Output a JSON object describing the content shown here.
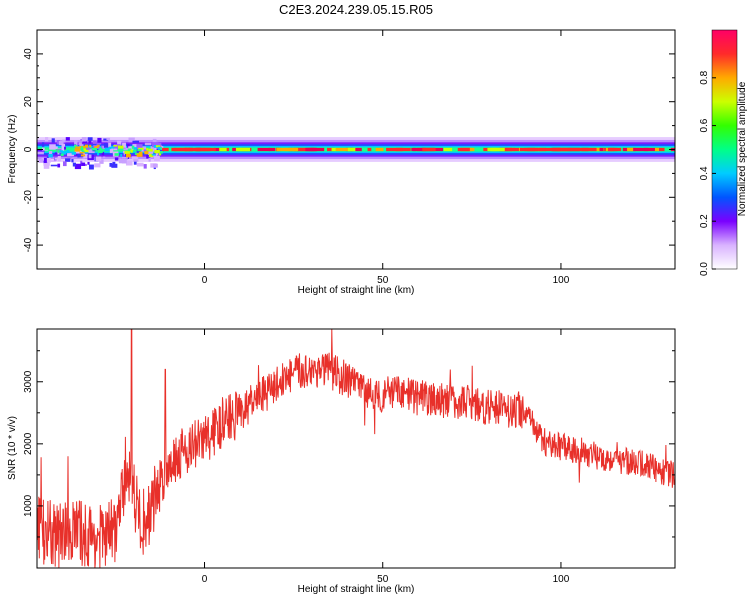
{
  "figure": {
    "title": "C2E3.2024.239.05.15.R05"
  },
  "chart_data": [
    {
      "type": "heatmap",
      "xlabel": "Height of straight line (km)",
      "ylabel": "Frequency (Hz)",
      "xlim": [
        -47,
        132
      ],
      "ylim": [
        -50,
        50
      ],
      "xticks": [
        0,
        50,
        100
      ],
      "yticks": [
        40,
        20,
        0,
        -20,
        -40
      ],
      "grid": false,
      "colorbar": {
        "label": "Normalized spectral amplitude",
        "range": [
          0.0,
          1.0
        ],
        "ticks": [
          0.0,
          0.2,
          0.4,
          0.6,
          0.8
        ]
      },
      "band": {
        "center_frequency_hz": 0,
        "core_half_width_hz": 1,
        "outer_half_width_hz": 5,
        "peak_amplitude": 0.95
      }
    },
    {
      "type": "line",
      "xlabel": "Height of straight line (km)",
      "ylabel": "SNR (10 * v/v)",
      "xlim": [
        -47,
        132
      ],
      "ylim": [
        0,
        3850
      ],
      "xticks": [
        0,
        50,
        100
      ],
      "yticks": [
        1000,
        2000,
        3000
      ],
      "grid": false,
      "series": [
        {
          "color": "#e8302a",
          "x": [
            -47,
            -44,
            -40,
            -36,
            -32,
            -28,
            -25,
            -23,
            -22,
            -20,
            -18,
            -16,
            -13,
            -10,
            -6,
            -2,
            2,
            6,
            10,
            14,
            18,
            22,
            26,
            30,
            34,
            38,
            42,
            46,
            50,
            55,
            60,
            65,
            70,
            75,
            80,
            85,
            88,
            90,
            93,
            96,
            100,
            105,
            110,
            115,
            120,
            125,
            128,
            132
          ],
          "values": [
            700,
            550,
            520,
            600,
            500,
            480,
            650,
            1100,
            1700,
            1300,
            700,
            800,
            1300,
            1700,
            1900,
            2000,
            2150,
            2400,
            2500,
            2700,
            2850,
            3050,
            3150,
            3200,
            3200,
            3100,
            2950,
            2850,
            2800,
            2800,
            2750,
            2700,
            2700,
            2650,
            2600,
            2550,
            2550,
            2550,
            2200,
            2000,
            1950,
            1900,
            1800,
            1750,
            1700,
            1650,
            1550,
            1500
          ]
        }
      ]
    }
  ]
}
